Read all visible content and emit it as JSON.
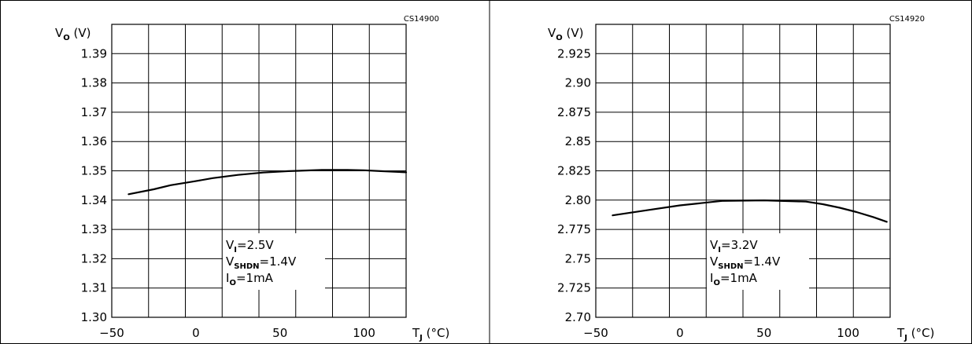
{
  "chart_data": [
    {
      "type": "line",
      "code": "CS14900",
      "ylabel": {
        "main": "V",
        "sub": "O",
        "unit": " (V)"
      },
      "xlabel": {
        "main": "T",
        "sub": "J",
        "unit": " (°C)"
      },
      "xlim": [
        -50,
        125
      ],
      "ylim": [
        1.3,
        1.4
      ],
      "xticks": [
        "−50",
        "0",
        "50",
        "100"
      ],
      "xtick_values": [
        -50,
        0,
        50,
        100
      ],
      "yticks": [
        "1.30",
        "1.31",
        "1.32",
        "1.33",
        "1.34",
        "1.35",
        "1.36",
        "1.37",
        "1.38",
        "1.39"
      ],
      "ytick_values": [
        1.3,
        1.31,
        1.32,
        1.33,
        1.34,
        1.35,
        1.36,
        1.37,
        1.38,
        1.39
      ],
      "grid": true,
      "series": [
        {
          "x": [
            -40,
            -25,
            -15,
            0,
            10,
            25,
            40,
            55,
            75,
            90,
            100,
            110,
            125
          ],
          "y": [
            1.342,
            1.3437,
            1.3451,
            1.3465,
            1.3475,
            1.3486,
            1.3494,
            1.3499,
            1.3503,
            1.3503,
            1.3502,
            1.3499,
            1.3495
          ]
        }
      ],
      "conditions": [
        {
          "main": "V",
          "sub": "I",
          "val": "=2.5V"
        },
        {
          "main": "V",
          "sub": "SHDN",
          "val": "=1.4V"
        },
        {
          "main": "I",
          "sub": "O",
          "val": "=1mA"
        }
      ]
    },
    {
      "type": "line",
      "code": "CS14920",
      "ylabel": {
        "main": "V",
        "sub": "O",
        "unit": " (V)"
      },
      "xlabel": {
        "main": "T",
        "sub": "J",
        "unit": " (°C)"
      },
      "xlim": [
        -50,
        125
      ],
      "ylim": [
        2.7,
        2.95
      ],
      "xticks": [
        "−50",
        "0",
        "50",
        "100"
      ],
      "xtick_values": [
        -50,
        0,
        50,
        100
      ],
      "yticks": [
        "2.70",
        "2.725",
        "2.75",
        "2.775",
        "2.80",
        "2.825",
        "2.85",
        "2.875",
        "2.90",
        "2.925"
      ],
      "ytick_values": [
        2.7,
        2.725,
        2.75,
        2.775,
        2.8,
        2.825,
        2.85,
        2.875,
        2.9,
        2.925
      ],
      "grid": true,
      "series": [
        {
          "x": [
            -40,
            -20,
            0,
            25,
            50,
            75,
            85,
            95,
            105,
            115,
            123
          ],
          "y": [
            2.787,
            2.7913,
            2.7955,
            2.7993,
            2.7998,
            2.7987,
            2.7965,
            2.7935,
            2.7898,
            2.7855,
            2.7815
          ]
        }
      ],
      "conditions": [
        {
          "main": "V",
          "sub": "I",
          "val": "=3.2V"
        },
        {
          "main": "V",
          "sub": "SHDN",
          "val": "=1.4V"
        },
        {
          "main": "I",
          "sub": "O",
          "val": "=1mA"
        }
      ]
    }
  ]
}
